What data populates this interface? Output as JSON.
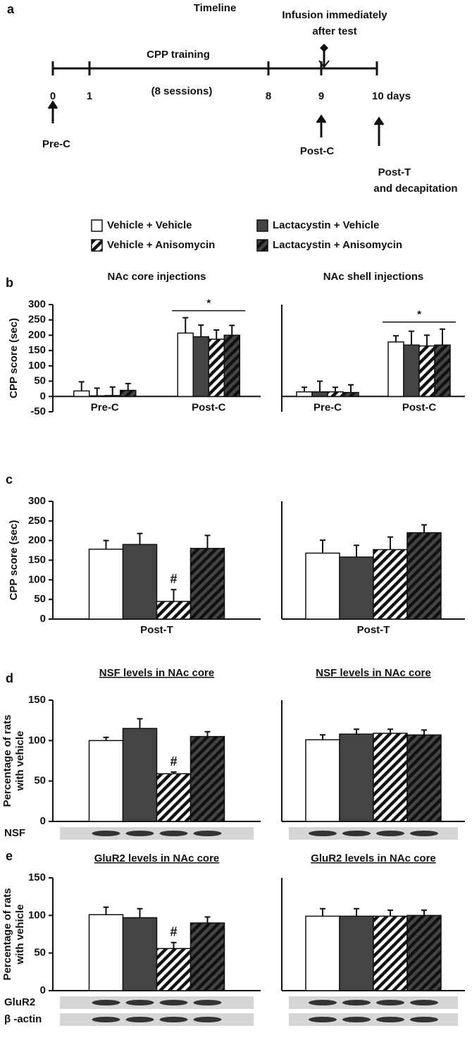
{
  "timeline": {
    "label": "a",
    "title": "Timeline",
    "infusion": [
      "Infusion immediately",
      "after test"
    ],
    "training": "CPP training",
    "sessions": "(8 sessions)",
    "ticks": [
      "0",
      "1",
      "8",
      "9",
      "10 days"
    ],
    "tests": [
      "Pre-C",
      "Post-C",
      "Post-T"
    ],
    "decapitation": "and decapitation"
  },
  "legend": [
    {
      "name": "Vehicle + Vehicle",
      "color": "#ffffff",
      "hatch": false
    },
    {
      "name": "Lactacystin + Vehicle",
      "color": "#444444",
      "hatch": false
    },
    {
      "name": "Vehicle + Anisomycin",
      "color": "#ffffff",
      "hatch": true
    },
    {
      "name": "Lactacystin + Anisomycin",
      "color": "#444444",
      "hatch": true
    }
  ],
  "chart_data": [
    {
      "type": "bar",
      "panel": "b",
      "title": "NAc core injections",
      "ylabel": [
        "CPP  score (sec)"
      ],
      "categories": [
        "Pre-C",
        "Post-C"
      ],
      "ylim": [
        -50,
        300
      ],
      "yticks": [
        -50,
        0,
        50,
        100,
        150,
        200,
        250,
        300
      ],
      "series": [
        {
          "values": [
            18,
            207
          ],
          "errors": [
            30,
            50
          ]
        },
        {
          "values": [
            2,
            195
          ],
          "errors": [
            25,
            38
          ]
        },
        {
          "values": [
            3,
            187
          ],
          "errors": [
            28,
            30
          ]
        },
        {
          "values": [
            20,
            200
          ],
          "errors": [
            22,
            32
          ]
        }
      ],
      "annotations": [
        {
          "text": "*",
          "category": 1
        }
      ]
    },
    {
      "type": "bar",
      "title": "NAc shell injections",
      "categories": [
        "Pre-C",
        "Post-C"
      ],
      "ylim": [
        -50,
        300
      ],
      "series": [
        {
          "values": [
            15,
            178
          ],
          "errors": [
            15,
            20
          ]
        },
        {
          "values": [
            15,
            168
          ],
          "errors": [
            35,
            45
          ]
        },
        {
          "values": [
            15,
            165
          ],
          "errors": [
            15,
            35
          ]
        },
        {
          "values": [
            13,
            168
          ],
          "errors": [
            25,
            52
          ]
        }
      ],
      "annotations": [
        {
          "text": "*",
          "category": 1
        }
      ]
    },
    {
      "type": "bar",
      "panel": "c",
      "ylabel": [
        "CPP  score (sec)"
      ],
      "categories": [
        "Post-T"
      ],
      "ylim": [
        0,
        300
      ],
      "yticks": [
        0,
        50,
        100,
        150,
        200,
        250,
        300
      ],
      "series": [
        {
          "values": [
            178
          ],
          "errors": [
            22
          ]
        },
        {
          "values": [
            190
          ],
          "errors": [
            28
          ]
        },
        {
          "values": [
            45
          ],
          "errors": [
            30
          ]
        },
        {
          "values": [
            180
          ],
          "errors": [
            33
          ]
        }
      ],
      "annotations": [
        {
          "text": "#",
          "category": 0,
          "series": 2
        }
      ]
    },
    {
      "type": "bar",
      "categories": [
        "Post-T"
      ],
      "ylim": [
        0,
        300
      ],
      "series": [
        {
          "values": [
            168
          ],
          "errors": [
            33
          ]
        },
        {
          "values": [
            158
          ],
          "errors": [
            30
          ]
        },
        {
          "values": [
            177
          ],
          "errors": [
            32
          ]
        },
        {
          "values": [
            220
          ],
          "errors": [
            20
          ]
        }
      ]
    },
    {
      "type": "bar",
      "panel": "d",
      "title": "NSF levels in NAc core",
      "ylabel": [
        "Percentage of rats",
        "with vehicle"
      ],
      "categories": [
        null
      ],
      "ylim": [
        0,
        150
      ],
      "yticks": [
        0,
        50,
        100,
        150
      ],
      "series": [
        {
          "values": [
            100
          ],
          "errors": [
            4
          ]
        },
        {
          "values": [
            115
          ],
          "errors": [
            12
          ]
        },
        {
          "values": [
            59
          ],
          "errors": [
            2
          ]
        },
        {
          "values": [
            105
          ],
          "errors": [
            6
          ]
        }
      ],
      "annotations": [
        {
          "text": "#",
          "category": 0,
          "series": 2
        }
      ],
      "blots": [
        "NSF"
      ]
    },
    {
      "type": "bar",
      "title": "NSF levels in NAc core",
      "categories": [
        null
      ],
      "ylim": [
        0,
        150
      ],
      "series": [
        {
          "values": [
            101
          ],
          "errors": [
            6
          ]
        },
        {
          "values": [
            108
          ],
          "errors": [
            6
          ]
        },
        {
          "values": [
            109
          ],
          "errors": [
            5
          ]
        },
        {
          "values": [
            107
          ],
          "errors": [
            6
          ]
        }
      ]
    },
    {
      "type": "bar",
      "panel": "e",
      "title": "GluR2 levels in NAc core",
      "ylabel": [
        "Percentage of rats",
        "with vehicle"
      ],
      "categories": [
        null
      ],
      "ylim": [
        0,
        150
      ],
      "yticks": [
        0,
        50,
        100,
        150
      ],
      "series": [
        {
          "values": [
            101
          ],
          "errors": [
            10
          ]
        },
        {
          "values": [
            97
          ],
          "errors": [
            12
          ]
        },
        {
          "values": [
            56
          ],
          "errors": [
            8
          ]
        },
        {
          "values": [
            90
          ],
          "errors": [
            8
          ]
        }
      ],
      "annotations": [
        {
          "text": "#",
          "category": 0,
          "series": 2
        }
      ],
      "blots": [
        "GluR2",
        "β -actin"
      ]
    },
    {
      "type": "bar",
      "title": "GluR2 levels in NAc core",
      "categories": [
        null
      ],
      "ylim": [
        0,
        150
      ],
      "series": [
        {
          "values": [
            99
          ],
          "errors": [
            10
          ]
        },
        {
          "values": [
            99
          ],
          "errors": [
            10
          ]
        },
        {
          "values": [
            99
          ],
          "errors": [
            8
          ]
        },
        {
          "values": [
            100
          ],
          "errors": [
            7
          ]
        }
      ]
    }
  ]
}
